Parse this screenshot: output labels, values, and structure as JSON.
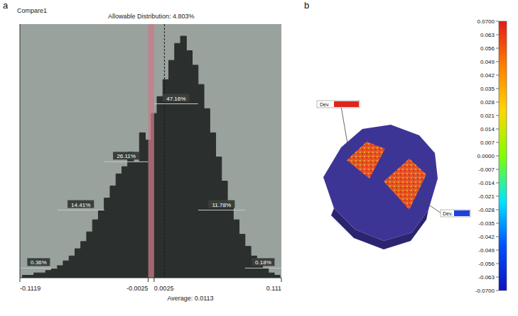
{
  "chart_data": [
    {
      "panel": "a",
      "type": "histogram",
      "title": "Compare1",
      "bins": [
        -0.11,
        -0.105,
        -0.1,
        -0.095,
        -0.09,
        -0.085,
        -0.08,
        -0.075,
        -0.07,
        -0.065,
        -0.06,
        -0.055,
        -0.05,
        -0.045,
        -0.04,
        -0.035,
        -0.03,
        -0.025,
        -0.02,
        -0.015,
        -0.01,
        -0.005,
        0.0,
        0.005,
        0.01,
        0.015,
        0.02,
        0.025,
        0.03,
        0.035,
        0.04,
        0.045,
        0.05,
        0.055,
        0.06,
        0.065,
        0.07,
        0.075,
        0.08,
        0.085,
        0.09,
        0.095,
        0.1,
        0.105,
        0.11
      ],
      "counts": [
        1,
        1,
        2,
        2,
        3,
        4,
        5,
        7,
        9,
        12,
        15,
        19,
        24,
        28,
        33,
        38,
        43,
        46,
        52,
        48,
        60,
        57,
        68,
        75,
        82,
        90,
        97,
        100,
        94,
        88,
        80,
        70,
        60,
        50,
        40,
        31,
        24,
        18,
        13,
        9,
        6,
        4,
        2,
        1
      ],
      "color": "#2b2f2d",
      "xlim": [
        -0.1119,
        0.111
      ],
      "xticks": [
        -0.1119,
        -0.0025,
        0.0025,
        0.111
      ],
      "ylim": [
        0,
        105
      ],
      "yticks": [],
      "tick_labels": "x",
      "allowable": {
        "label": "Allowable Distribution: 4.803%",
        "range": [
          -0.0025,
          0.0025
        ],
        "color": "#c97b86"
      },
      "average": {
        "label": "Average: 0.0113",
        "value": 0.0113
      },
      "segments": [
        {
          "label": "0.36%",
          "range": [
            -0.1119,
            -0.08
          ],
          "y": 4
        },
        {
          "label": "14.41%",
          "range": [
            -0.08,
            -0.04
          ],
          "y": 28
        },
        {
          "label": "26.11%",
          "range": [
            -0.04,
            -0.0025
          ],
          "y": 48
        },
        {
          "label": "47.16%",
          "range": [
            0.0025,
            0.04
          ],
          "y": 72
        },
        {
          "label": "11.78%",
          "range": [
            0.04,
            0.08
          ],
          "y": 28
        },
        {
          "label": "0.18%",
          "range": [
            0.08,
            0.111
          ],
          "y": 4
        }
      ]
    },
    {
      "panel": "b",
      "type": "color_map",
      "callouts": [
        {
          "label": "Dev.",
          "color": "#e0241b"
        },
        {
          "label": "Dev.",
          "color": "#1f3fe0"
        }
      ],
      "colorbar": {
        "range": [
          -0.07,
          0.07
        ],
        "ticks": [
          {
            "value": 0.07,
            "label": "0.0700"
          },
          0.063,
          0.056,
          0.049,
          0.042,
          0.035,
          0.028,
          0.021,
          0.014,
          0.007,
          {
            "value": 0,
            "label": "0.0000"
          },
          -0.007,
          -0.014,
          -0.021,
          -0.028,
          -0.035,
          -0.042,
          -0.049,
          -0.056,
          -0.063,
          {
            "value": -0.07,
            "label": "-0.0700"
          }
        ],
        "colors": [
          "#e31a1c",
          "#ff7f00",
          "#ffd700",
          "#7fff00",
          "#00e5ff",
          "#0050ff",
          "#1010c0"
        ]
      }
    }
  ]
}
